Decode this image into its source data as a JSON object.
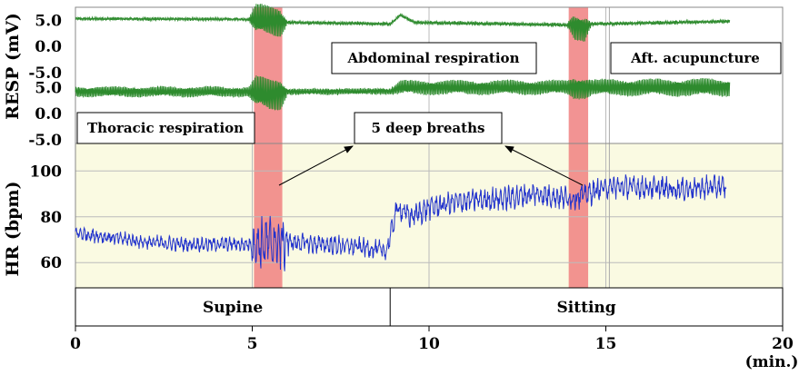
{
  "chart_data": {
    "type": "line",
    "x_unit_label": "(min.)",
    "xlim": [
      0,
      20
    ],
    "x_ticks": [
      0,
      5,
      10,
      15,
      20
    ],
    "panels": [
      {
        "id": "resp_abdominal",
        "annotation": "Abdominal respiration",
        "y_ticks": [
          "5.0",
          "0.0",
          "-5.0"
        ],
        "ylim": [
          -5,
          7.5
        ],
        "series": [
          {
            "color": "#2e8b2e",
            "baseline": [
              [
                0,
                5.3
              ],
              [
                5,
                5.2
              ],
              [
                6,
                4.6
              ],
              [
                8.9,
                4.3
              ],
              [
                9.2,
                6.0
              ],
              [
                9.6,
                4.6
              ],
              [
                14,
                4.1
              ],
              [
                14.4,
                3.5
              ],
              [
                14.6,
                4.3
              ],
              [
                18.5,
                4.8
              ]
            ],
            "amplitude": [
              [
                0,
                0.25
              ],
              [
                4.9,
                0.25
              ],
              [
                5.1,
                3.0
              ],
              [
                5.8,
                3.0
              ],
              [
                6.0,
                0.3
              ],
              [
                13.9,
                0.3
              ],
              [
                14.1,
                2.6
              ],
              [
                14.4,
                2.6
              ],
              [
                14.6,
                0.3
              ],
              [
                18.5,
                0.3
              ]
            ]
          }
        ]
      },
      {
        "id": "resp_thoracic",
        "annotation": "Thoracic respiration",
        "y_ticks": [
          "5.0",
          "0.0",
          "-5.0"
        ],
        "ylim": [
          -5,
          7.5
        ],
        "series": [
          {
            "color": "#2e8b2e",
            "baseline": [
              [
                0,
                4.2
              ],
              [
                5,
                4.2
              ],
              [
                5.5,
                3.5
              ],
              [
                6,
                4.2
              ],
              [
                8.9,
                4.3
              ],
              [
                9.2,
                5.0
              ],
              [
                18.5,
                5.0
              ]
            ],
            "amplitude": [
              [
                0,
                1.0
              ],
              [
                4.9,
                1.0
              ],
              [
                5.1,
                3.2
              ],
              [
                5.8,
                3.2
              ],
              [
                6.0,
                0.6
              ],
              [
                8.9,
                0.6
              ],
              [
                9.2,
                1.4
              ],
              [
                13.9,
                1.4
              ],
              [
                14.1,
                2.2
              ],
              [
                14.4,
                2.2
              ],
              [
                14.6,
                1.6
              ],
              [
                18.5,
                1.7
              ]
            ]
          }
        ]
      },
      {
        "id": "hr",
        "ylabel": "HR (bpm)",
        "y_ticks": [
          60,
          80,
          100
        ],
        "ylim": [
          49,
          112
        ],
        "series": [
          {
            "color": "#2233cc",
            "baseline": [
              [
                0,
                73
              ],
              [
                1,
                71
              ],
              [
                2,
                69
              ],
              [
                3,
                68
              ],
              [
                4,
                68
              ],
              [
                5,
                68
              ],
              [
                6,
                69
              ],
              [
                7,
                68
              ],
              [
                8,
                67
              ],
              [
                8.8,
                65
              ],
              [
                9.1,
                84
              ],
              [
                9.5,
                80
              ],
              [
                10,
                84
              ],
              [
                11,
                87
              ],
              [
                12,
                88
              ],
              [
                13,
                90
              ],
              [
                14,
                88
              ],
              [
                14.5,
                90
              ],
              [
                15,
                93
              ],
              [
                16,
                93
              ],
              [
                17,
                92
              ],
              [
                18,
                93
              ],
              [
                18.4,
                93
              ]
            ],
            "amplitude": [
              [
                0,
                3
              ],
              [
                4.9,
                3
              ],
              [
                5.1,
                12
              ],
              [
                5.9,
                12
              ],
              [
                6.1,
                4
              ],
              [
                8.8,
                4
              ],
              [
                9.2,
                5
              ],
              [
                18.4,
                5
              ]
            ]
          }
        ]
      }
    ],
    "resp_ylabel": "RESP (mV)",
    "deep_breath_intervals": [
      [
        5.05,
        5.85
      ],
      [
        13.95,
        14.5
      ]
    ],
    "highlight_color": "#f08080",
    "hr_background": "#fafae2",
    "deep_breaths_label": "5 deep breaths",
    "acupuncture_label": "Aft. acupuncture",
    "acupuncture_x": 15.1,
    "positions": [
      {
        "label": "Supine",
        "range": [
          0,
          8.9
        ]
      },
      {
        "label": "Sitting",
        "range": [
          8.9,
          20
        ]
      }
    ]
  }
}
